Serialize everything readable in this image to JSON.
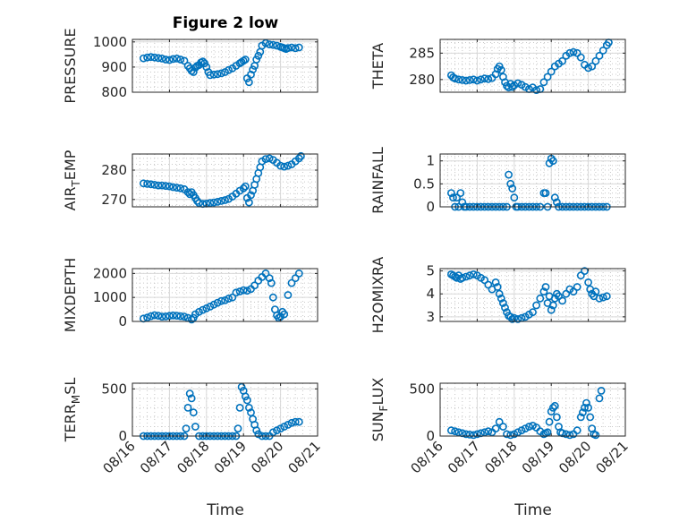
{
  "figure": {
    "title": "Figure 2 low",
    "xlabel": "Time"
  },
  "colors": {
    "marker": "#0072BD",
    "axis": "#262626",
    "grid": "#d9d9d9"
  },
  "chart_data": [
    {
      "type": "scatter",
      "ylabel": "PRESSURE",
      "ylabel_sub": "",
      "ylabel_after": "",
      "ylim": [
        800,
        1010
      ],
      "yticks": [
        800,
        900,
        1000
      ],
      "xlim": [
        0,
        5
      ],
      "xticks": [
        "08/16",
        "08/17",
        "08/18",
        "08/19",
        "08/20",
        "08/21"
      ],
      "grid": true,
      "marker": "circle",
      "series": [
        {
          "x": [
            0.3,
            0.4,
            0.5,
            0.6,
            0.7,
            0.8,
            0.9,
            1.0,
            1.1,
            1.2,
            1.3,
            1.4,
            1.5,
            1.55,
            1.6,
            1.65,
            1.7,
            1.75,
            1.8,
            1.85,
            1.9,
            1.95,
            2.0,
            2.05,
            2.1,
            2.2,
            2.3,
            2.4,
            2.5,
            2.6,
            2.7,
            2.8,
            2.9,
            2.95,
            3.0,
            3.05,
            3.1,
            3.15,
            3.2,
            3.25,
            3.3,
            3.35,
            3.4,
            3.45,
            3.5,
            3.6,
            3.7,
            3.8,
            3.9,
            4.0,
            4.05,
            4.1,
            4.15,
            4.2,
            4.3,
            4.4,
            4.5
          ],
          "y": [
            935,
            938,
            940,
            938,
            936,
            934,
            930,
            928,
            932,
            934,
            930,
            925,
            905,
            895,
            885,
            880,
            898,
            905,
            908,
            918,
            922,
            915,
            900,
            880,
            868,
            870,
            872,
            875,
            880,
            888,
            895,
            905,
            915,
            920,
            925,
            930,
            855,
            840,
            870,
            890,
            905,
            930,
            945,
            960,
            985,
            995,
            990,
            988,
            985,
            980,
            978,
            975,
            972,
            976,
            978,
            975,
            978
          ]
        }
      ]
    },
    {
      "type": "scatter",
      "ylabel": "THETA",
      "ylabel_sub": "",
      "ylabel_after": "",
      "ylim": [
        277.6,
        287.6
      ],
      "yticks": [
        280,
        285
      ],
      "xlim": [
        0,
        5
      ],
      "xticks": [
        "08/16",
        "08/17",
        "08/18",
        "08/19",
        "08/20",
        "08/21"
      ],
      "grid": true,
      "marker": "circle",
      "series": [
        {
          "x": [
            0.3,
            0.35,
            0.4,
            0.5,
            0.6,
            0.7,
            0.8,
            0.9,
            1.0,
            1.1,
            1.2,
            1.3,
            1.4,
            1.5,
            1.55,
            1.6,
            1.65,
            1.7,
            1.75,
            1.8,
            1.85,
            1.9,
            1.95,
            2.0,
            2.1,
            2.2,
            2.3,
            2.4,
            2.5,
            2.6,
            2.7,
            2.8,
            2.9,
            3.0,
            3.1,
            3.2,
            3.3,
            3.4,
            3.5,
            3.6,
            3.7,
            3.8,
            3.9,
            4.0,
            4.1,
            4.2,
            4.3,
            4.4,
            4.5,
            4.55
          ],
          "y": [
            280.8,
            280.4,
            280.2,
            280.0,
            279.9,
            279.8,
            279.9,
            280.0,
            279.8,
            280.0,
            280.2,
            280.1,
            280.3,
            281.0,
            282.0,
            282.5,
            281.8,
            280.5,
            279.5,
            278.8,
            278.5,
            279.2,
            278.6,
            278.9,
            279.3,
            279.0,
            278.6,
            278.2,
            278.5,
            278.0,
            278.2,
            279.5,
            280.5,
            281.5,
            282.5,
            283.0,
            283.5,
            284.5,
            285.0,
            285.2,
            285.0,
            284.2,
            282.8,
            282.2,
            282.5,
            283.5,
            284.5,
            285.5,
            286.5,
            287.0
          ]
        }
      ]
    },
    {
      "type": "scatter",
      "ylabel": "AIR",
      "ylabel_sub": "T",
      "ylabel_after": "EMP",
      "ylim": [
        267.5,
        285.5
      ],
      "yticks": [
        270,
        280
      ],
      "xlim": [
        0,
        5
      ],
      "xticks": [
        "08/16",
        "08/17",
        "08/18",
        "08/19",
        "08/20",
        "08/21"
      ],
      "grid": true,
      "marker": "circle",
      "series": [
        {
          "x": [
            0.3,
            0.4,
            0.5,
            0.6,
            0.7,
            0.8,
            0.9,
            1.0,
            1.1,
            1.2,
            1.3,
            1.4,
            1.5,
            1.55,
            1.6,
            1.65,
            1.7,
            1.75,
            1.8,
            1.9,
            2.0,
            2.1,
            2.2,
            2.3,
            2.4,
            2.5,
            2.6,
            2.7,
            2.8,
            2.9,
            3.0,
            3.05,
            3.1,
            3.15,
            3.2,
            3.25,
            3.3,
            3.35,
            3.4,
            3.45,
            3.5,
            3.6,
            3.7,
            3.8,
            3.9,
            4.0,
            4.1,
            4.2,
            4.3,
            4.4,
            4.5,
            4.55
          ],
          "y": [
            275.5,
            275.3,
            275.2,
            275.0,
            274.8,
            274.8,
            274.6,
            274.5,
            274.2,
            274.0,
            273.8,
            273.5,
            272.5,
            271.8,
            272.5,
            271.5,
            270.5,
            269.5,
            268.8,
            268.5,
            268.6,
            268.8,
            269.0,
            269.2,
            269.5,
            269.8,
            270.2,
            271.0,
            272.0,
            273.0,
            273.8,
            274.5,
            270.5,
            269.0,
            271.5,
            273.0,
            275.0,
            277.0,
            279.0,
            281.0,
            283.0,
            283.8,
            284.0,
            283.5,
            282.5,
            281.5,
            281.2,
            281.5,
            282.0,
            283.0,
            284.0,
            284.8
          ]
        }
      ]
    },
    {
      "type": "scatter",
      "ylabel": "RAINFALL",
      "ylabel_sub": "",
      "ylabel_after": "",
      "ylim": [
        0,
        1.15
      ],
      "yticks": [
        0,
        0.5,
        1
      ],
      "xlim": [
        0,
        5
      ],
      "xticks": [
        "08/16",
        "08/17",
        "08/18",
        "08/19",
        "08/20",
        "08/21"
      ],
      "grid": true,
      "marker": "circle",
      "series": [
        {
          "x": [
            0.3,
            0.35,
            0.4,
            0.45,
            0.5,
            0.55,
            0.6,
            0.65,
            0.7,
            0.8,
            0.9,
            1.0,
            1.1,
            1.2,
            1.3,
            1.4,
            1.5,
            1.6,
            1.7,
            1.8,
            1.85,
            1.9,
            1.95,
            2.0,
            2.05,
            2.1,
            2.2,
            2.3,
            2.4,
            2.5,
            2.6,
            2.7,
            2.8,
            2.85,
            2.9,
            2.95,
            3.0,
            3.05,
            3.1,
            3.15,
            3.2,
            3.3,
            3.4,
            3.5,
            3.6,
            3.7,
            3.8,
            3.9,
            4.0,
            4.1,
            4.2,
            4.3,
            4.4,
            4.5
          ],
          "y": [
            0.3,
            0.2,
            0.0,
            0.2,
            0.0,
            0.3,
            0.1,
            0.0,
            0.0,
            0.0,
            0.0,
            0.0,
            0.0,
            0.0,
            0.0,
            0.0,
            0.0,
            0.0,
            0.0,
            0.0,
            0.7,
            0.5,
            0.4,
            0.2,
            0.0,
            0.0,
            0.0,
            0.0,
            0.0,
            0.0,
            0.0,
            0.0,
            0.3,
            0.3,
            0.0,
            0.95,
            1.05,
            1.0,
            0.2,
            0.1,
            0.0,
            0.0,
            0.0,
            0.0,
            0.0,
            0.0,
            0.0,
            0.0,
            0.0,
            0.0,
            0.0,
            0.0,
            0.0,
            0.0
          ]
        }
      ]
    },
    {
      "type": "scatter",
      "ylabel": "MIXDEPTH",
      "ylabel_sub": "",
      "ylabel_after": "",
      "ylim": [
        0,
        2200
      ],
      "yticks": [
        0,
        1000,
        2000
      ],
      "xlim": [
        0,
        5
      ],
      "xticks": [
        "08/16",
        "08/17",
        "08/18",
        "08/19",
        "08/20",
        "08/21"
      ],
      "grid": true,
      "marker": "circle",
      "series": [
        {
          "x": [
            0.3,
            0.4,
            0.5,
            0.6,
            0.7,
            0.8,
            0.9,
            1.0,
            1.1,
            1.2,
            1.3,
            1.4,
            1.5,
            1.6,
            1.65,
            1.7,
            1.8,
            1.9,
            2.0,
            2.1,
            2.2,
            2.3,
            2.4,
            2.5,
            2.6,
            2.7,
            2.8,
            2.9,
            3.0,
            3.1,
            3.2,
            3.3,
            3.4,
            3.5,
            3.6,
            3.7,
            3.75,
            3.8,
            3.85,
            3.9,
            3.95,
            4.0,
            4.05,
            4.1,
            4.2,
            4.3,
            4.4,
            4.5
          ],
          "y": [
            120,
            160,
            220,
            260,
            240,
            200,
            210,
            230,
            250,
            240,
            220,
            200,
            150,
            80,
            150,
            300,
            400,
            480,
            550,
            620,
            700,
            780,
            850,
            880,
            950,
            1000,
            1200,
            1250,
            1300,
            1280,
            1350,
            1500,
            1700,
            1850,
            2000,
            1800,
            1600,
            1000,
            500,
            250,
            150,
            200,
            400,
            300,
            1100,
            1600,
            1800,
            2000
          ]
        }
      ]
    },
    {
      "type": "scatter",
      "ylabel": "H2OMIXRA",
      "ylabel_sub": "",
      "ylabel_after": "",
      "ylim": [
        2.8,
        5.1
      ],
      "yticks": [
        3,
        4,
        5
      ],
      "xlim": [
        0,
        5
      ],
      "xticks": [
        "08/16",
        "08/17",
        "08/18",
        "08/19",
        "08/20",
        "08/21"
      ],
      "grid": true,
      "marker": "circle",
      "series": [
        {
          "x": [
            0.3,
            0.35,
            0.4,
            0.45,
            0.5,
            0.55,
            0.6,
            0.7,
            0.8,
            0.9,
            1.0,
            1.1,
            1.2,
            1.3,
            1.4,
            1.5,
            1.55,
            1.6,
            1.65,
            1.7,
            1.75,
            1.8,
            1.85,
            1.9,
            1.95,
            2.0,
            2.1,
            2.2,
            2.3,
            2.4,
            2.5,
            2.6,
            2.7,
            2.8,
            2.85,
            2.9,
            2.95,
            3.0,
            3.05,
            3.1,
            3.15,
            3.2,
            3.3,
            3.4,
            3.5,
            3.6,
            3.7,
            3.8,
            3.9,
            4.0,
            4.05,
            4.1,
            4.15,
            4.2,
            4.3,
            4.4,
            4.5
          ],
          "y": [
            4.85,
            4.8,
            4.75,
            4.7,
            4.8,
            4.65,
            4.7,
            4.75,
            4.8,
            4.85,
            4.8,
            4.7,
            4.6,
            4.4,
            4.2,
            4.5,
            4.3,
            4.0,
            3.8,
            3.6,
            3.4,
            3.2,
            3.05,
            3.0,
            2.9,
            2.95,
            2.9,
            2.95,
            3.0,
            3.1,
            3.2,
            3.5,
            3.8,
            4.1,
            4.3,
            3.6,
            3.9,
            3.3,
            3.5,
            3.8,
            4.0,
            3.9,
            3.7,
            4.0,
            4.2,
            4.1,
            4.3,
            4.8,
            5.0,
            4.5,
            4.2,
            4.0,
            3.9,
            4.1,
            3.8,
            3.85,
            3.9
          ]
        }
      ]
    },
    {
      "type": "scatter",
      "ylabel": "TERR",
      "ylabel_sub": "M",
      "ylabel_after": "SL",
      "ylim": [
        0,
        560
      ],
      "yticks": [
        0,
        500
      ],
      "xlim": [
        0,
        5
      ],
      "xticks": [
        "08/16",
        "08/17",
        "08/18",
        "08/19",
        "08/20",
        "08/21"
      ],
      "grid": true,
      "marker": "circle",
      "series": [
        {
          "x": [
            0.3,
            0.4,
            0.5,
            0.6,
            0.7,
            0.8,
            0.9,
            1.0,
            1.1,
            1.2,
            1.3,
            1.4,
            1.45,
            1.5,
            1.55,
            1.6,
            1.65,
            1.7,
            1.8,
            1.9,
            2.0,
            2.1,
            2.2,
            2.3,
            2.4,
            2.5,
            2.6,
            2.7,
            2.8,
            2.85,
            2.9,
            2.95,
            3.0,
            3.05,
            3.1,
            3.15,
            3.2,
            3.25,
            3.3,
            3.35,
            3.4,
            3.5,
            3.6,
            3.7,
            3.8,
            3.9,
            4.0,
            4.1,
            4.2,
            4.3,
            4.4,
            4.5
          ],
          "y": [
            0,
            0,
            0,
            0,
            0,
            0,
            0,
            0,
            0,
            0,
            0,
            0,
            80,
            300,
            450,
            400,
            250,
            100,
            0,
            0,
            0,
            0,
            0,
            0,
            0,
            0,
            0,
            0,
            0,
            80,
            300,
            520,
            480,
            420,
            380,
            300,
            250,
            180,
            120,
            60,
            20,
            0,
            0,
            0,
            40,
            60,
            80,
            100,
            120,
            140,
            150,
            150
          ]
        }
      ]
    },
    {
      "type": "scatter",
      "ylabel": "SUN",
      "ylabel_sub": "F",
      "ylabel_after": "LUX",
      "ylim": [
        0,
        560
      ],
      "yticks": [
        0,
        500
      ],
      "xlim": [
        0,
        5
      ],
      "xticks": [
        "08/16",
        "08/17",
        "08/18",
        "08/19",
        "08/20",
        "08/21"
      ],
      "grid": true,
      "marker": "circle",
      "series": [
        {
          "x": [
            0.3,
            0.4,
            0.5,
            0.6,
            0.7,
            0.8,
            0.9,
            1.0,
            1.1,
            1.2,
            1.3,
            1.4,
            1.5,
            1.6,
            1.7,
            1.8,
            1.9,
            2.0,
            2.1,
            2.2,
            2.3,
            2.4,
            2.5,
            2.6,
            2.7,
            2.8,
            2.85,
            2.9,
            2.95,
            3.0,
            3.05,
            3.1,
            3.15,
            3.2,
            3.25,
            3.3,
            3.4,
            3.5,
            3.6,
            3.7,
            3.8,
            3.85,
            3.9,
            3.95,
            4.0,
            4.05,
            4.1,
            4.15,
            4.2,
            4.3,
            4.35
          ],
          "y": [
            60,
            50,
            40,
            30,
            20,
            15,
            10,
            20,
            30,
            40,
            50,
            40,
            80,
            150,
            100,
            20,
            10,
            20,
            40,
            60,
            80,
            100,
            110,
            90,
            50,
            20,
            30,
            40,
            150,
            260,
            300,
            320,
            200,
            100,
            40,
            30,
            20,
            10,
            20,
            60,
            200,
            250,
            300,
            350,
            300,
            200,
            80,
            20,
            10,
            400,
            480
          ]
        }
      ]
    }
  ]
}
